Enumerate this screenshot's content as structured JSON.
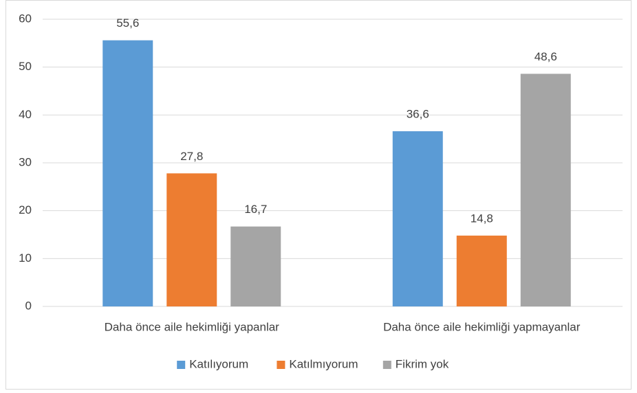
{
  "chart_data": {
    "type": "bar",
    "categories": [
      "Daha önce aile hekimliği yapanlar",
      "Daha önce aile hekimliği yapmayanlar"
    ],
    "series": [
      {
        "name": "Katılıyorum",
        "color": "#5b9bd5",
        "values": [
          55.6,
          36.6
        ],
        "value_labels": [
          "55,6",
          "36,6"
        ]
      },
      {
        "name": "Katılmıyorum",
        "color": "#ed7d31",
        "values": [
          27.8,
          14.8
        ],
        "value_labels": [
          "27,8",
          "14,8"
        ]
      },
      {
        "name": "Fikrim yok",
        "color": "#a5a5a5",
        "values": [
          16.7,
          48.6
        ],
        "value_labels": [
          "16,7",
          "48,6"
        ]
      }
    ],
    "ylim": [
      0,
      60
    ],
    "yticks": [
      0,
      10,
      20,
      30,
      40,
      50,
      60
    ],
    "grid": true,
    "legend": "bottom"
  }
}
